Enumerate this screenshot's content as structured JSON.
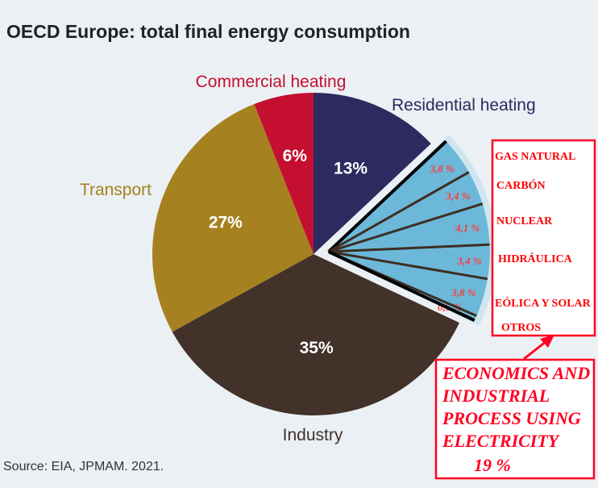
{
  "chart_data": {
    "type": "pie",
    "title": "OECD Europe: total final energy consumption",
    "source": "Source: EIA, JPMAM. 2021.",
    "slices": [
      {
        "name": "Residential heating",
        "value": 13,
        "label": "13%",
        "color": "#2c2a5e"
      },
      {
        "name": "",
        "value": 19,
        "label": "",
        "color": "#6cb8d9",
        "exploded": true
      },
      {
        "name": "Industry",
        "value": 35,
        "label": "35%",
        "color": "#42322a"
      },
      {
        "name": "Transport",
        "value": 27,
        "label": "27%",
        "color": "#a6811f"
      },
      {
        "name": "Commercial heating",
        "value": 6,
        "label": "6%",
        "color": "#c40f30"
      }
    ],
    "label_colors": {
      "Residential heating": "#2c2a5e",
      "Industry": "#42322a",
      "Transport": "#a6811f",
      "Commercial heating": "#c40f30"
    },
    "breakdown": [
      {
        "name": "GAS NATURAL",
        "value": 3.8,
        "label": "3,8 %"
      },
      {
        "name": "CARBÓN",
        "value": 3.4,
        "label": "3,4 %"
      },
      {
        "name": "NUCLEAR",
        "value": 4.1,
        "label": "4,1 %"
      },
      {
        "name": "HIDRÁULICA",
        "value": 3.4,
        "label": "3,4 %"
      },
      {
        "name": "EÓLICA Y SOLAR",
        "value": 3.8,
        "label": "3,8 %"
      },
      {
        "name": "OTROS",
        "value": 0.5,
        "label": "0,5 %"
      }
    ],
    "annotation": {
      "lines": [
        "ECONOMICS AND",
        "INDUSTRIAL",
        "PROCESS USING",
        "ELECTRICITY"
      ],
      "value": "19 %"
    }
  }
}
